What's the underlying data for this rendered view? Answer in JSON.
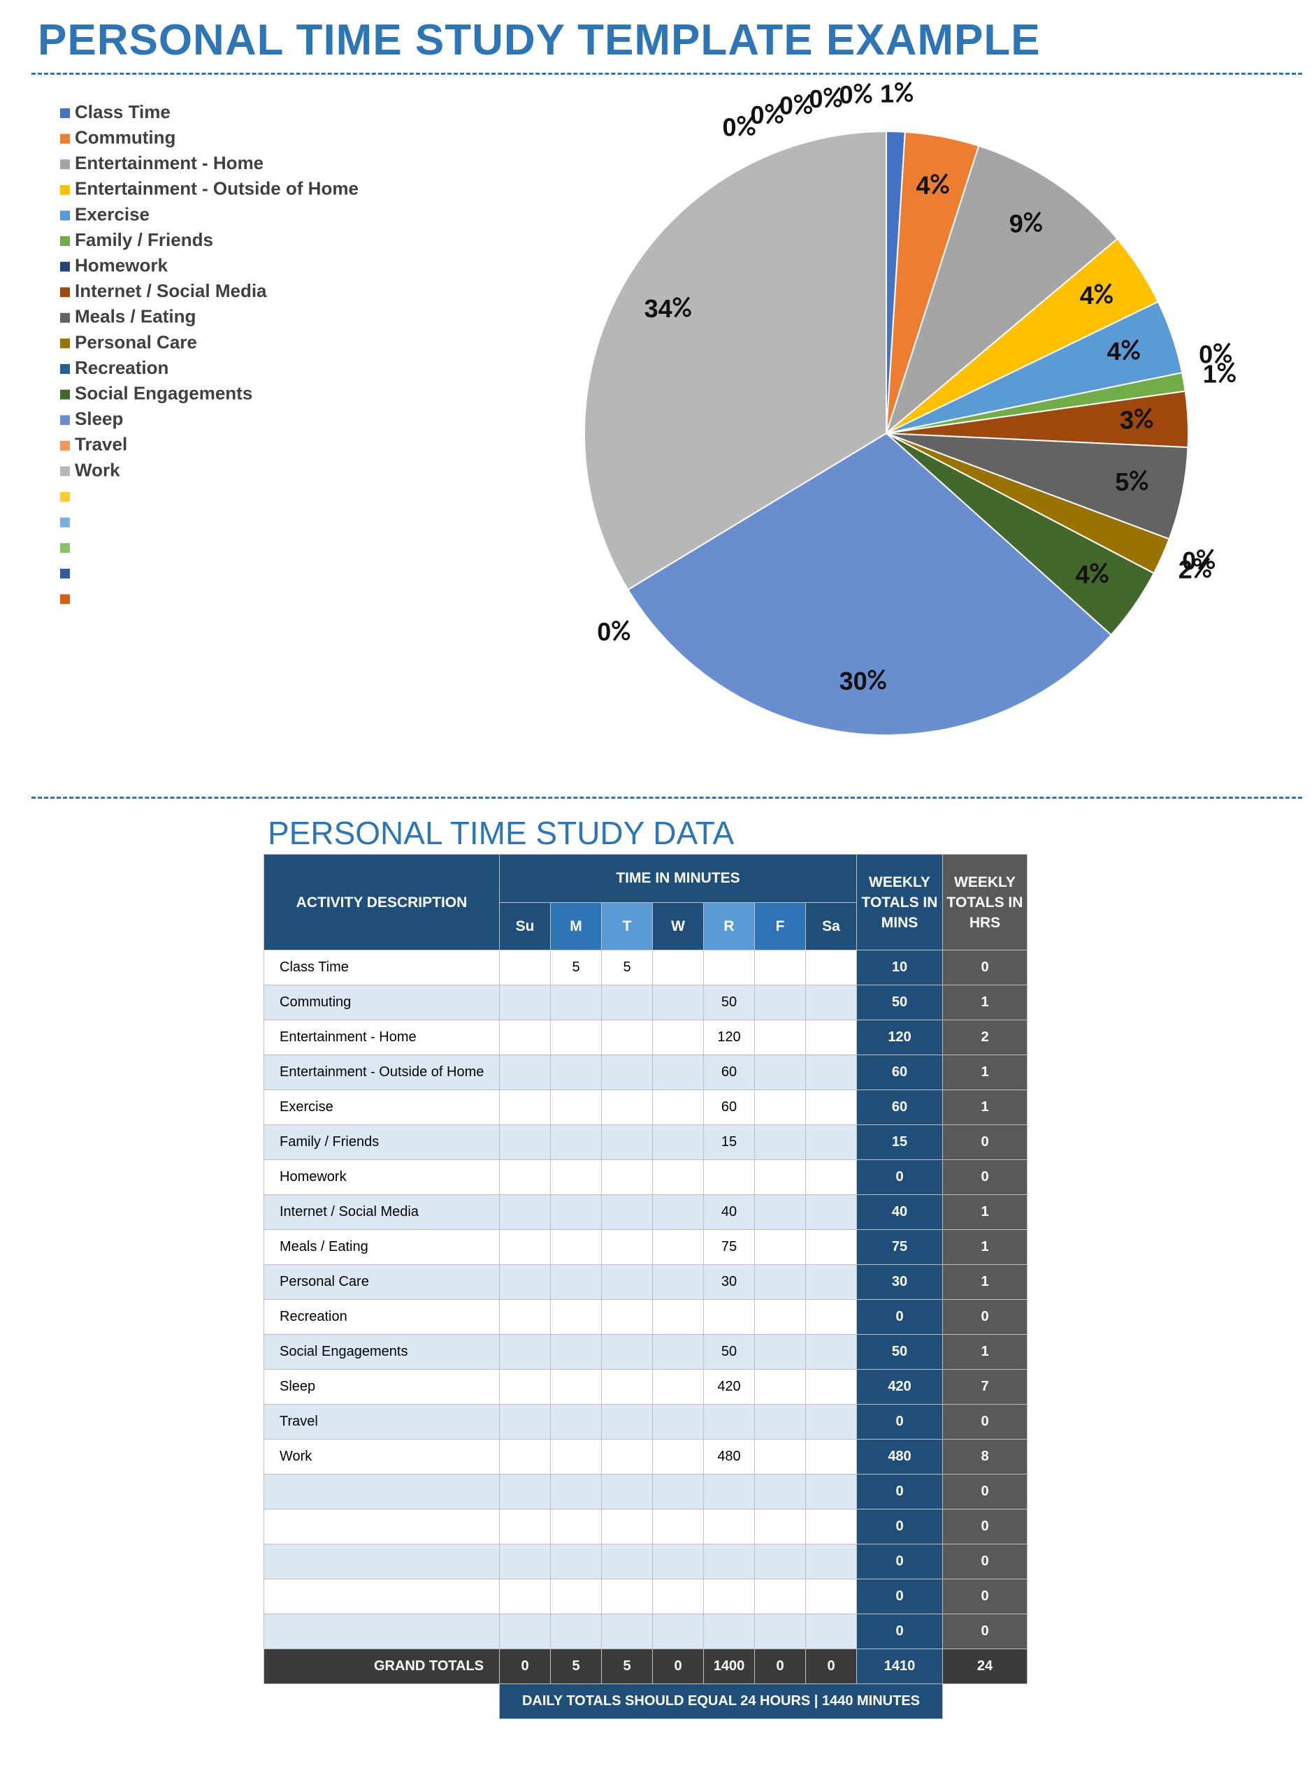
{
  "title": "PERSONAL TIME STUDY TEMPLATE EXAMPLE",
  "chart_data": {
    "type": "pie",
    "categories": [
      "Class Time",
      "Commuting",
      "Entertainment - Home",
      "Entertainment - Outside of Home",
      "Exercise",
      "Family / Friends",
      "Homework",
      "Internet / Social Media",
      "Meals / Eating",
      "Personal Care",
      "Recreation",
      "Social Engagements",
      "Sleep",
      "Travel",
      "Work",
      null,
      null,
      null,
      null,
      null
    ],
    "values": [
      1,
      4,
      9,
      4,
      4,
      1,
      0,
      3,
      5,
      2,
      0,
      4,
      30,
      0,
      34,
      0,
      0,
      0,
      0,
      0
    ],
    "colors": [
      "#4472c4",
      "#ed7d31",
      "#a5a5a5",
      "#ffc000",
      "#5b9bd5",
      "#70ad47",
      "#264478",
      "#9e480e",
      "#636363",
      "#997300",
      "#255e91",
      "#43682b",
      "#698ed0",
      "#f1975a",
      "#b7b7b7",
      "#ffcd33",
      "#7cafdd",
      "#8cc168",
      "#335aa1",
      "#d26012"
    ]
  },
  "table": {
    "title": "PERSONAL TIME STUDY DATA",
    "header": {
      "activity": "ACTIVITY DESCRIPTION",
      "time": "TIME IN MINUTES",
      "days": [
        "Su",
        "M",
        "T",
        "W",
        "R",
        "F",
        "Sa"
      ],
      "weekly_mins": "WEEKLY TOTALS IN MINS",
      "weekly_hrs": "WEEKLY TOTALS IN HRS"
    },
    "rows": [
      [
        "Class Time",
        null,
        5,
        5,
        null,
        null,
        null,
        null,
        10,
        0
      ],
      [
        "Commuting",
        null,
        null,
        null,
        null,
        50,
        null,
        null,
        50,
        1
      ],
      [
        "Entertainment - Home",
        null,
        null,
        null,
        null,
        120,
        null,
        null,
        120,
        2
      ],
      [
        "Entertainment - Outside of Home",
        null,
        null,
        null,
        null,
        60,
        null,
        null,
        60,
        1
      ],
      [
        "Exercise",
        null,
        null,
        null,
        null,
        60,
        null,
        null,
        60,
        1
      ],
      [
        "Family / Friends",
        null,
        null,
        null,
        null,
        15,
        null,
        null,
        15,
        0
      ],
      [
        "Homework",
        null,
        null,
        null,
        null,
        null,
        null,
        null,
        0,
        0
      ],
      [
        "Internet / Social Media",
        null,
        null,
        null,
        null,
        40,
        null,
        null,
        40,
        1
      ],
      [
        "Meals / Eating",
        null,
        null,
        null,
        null,
        75,
        null,
        null,
        75,
        1
      ],
      [
        "Personal Care",
        null,
        null,
        null,
        null,
        30,
        null,
        null,
        30,
        1
      ],
      [
        "Recreation",
        null,
        null,
        null,
        null,
        null,
        null,
        null,
        0,
        0
      ],
      [
        "Social Engagements",
        null,
        null,
        null,
        null,
        50,
        null,
        null,
        50,
        1
      ],
      [
        "Sleep",
        null,
        null,
        null,
        null,
        420,
        null,
        null,
        420,
        7
      ],
      [
        "Travel",
        null,
        null,
        null,
        null,
        null,
        null,
        null,
        0,
        0
      ],
      [
        "Work",
        null,
        null,
        null,
        null,
        480,
        null,
        null,
        480,
        8
      ],
      [
        null,
        null,
        null,
        null,
        null,
        null,
        null,
        null,
        0,
        0
      ],
      [
        null,
        null,
        null,
        null,
        null,
        null,
        null,
        null,
        0,
        0
      ],
      [
        null,
        null,
        null,
        null,
        null,
        null,
        null,
        null,
        0,
        0
      ],
      [
        null,
        null,
        null,
        null,
        null,
        null,
        null,
        null,
        0,
        0
      ],
      [
        null,
        null,
        null,
        null,
        null,
        null,
        null,
        null,
        0,
        0
      ]
    ],
    "totals": [
      "GRAND TOTALS",
      0,
      5,
      5,
      0,
      1400,
      0,
      0,
      1410,
      24
    ],
    "note": "DAILY TOTALS SHOULD EQUAL 24 HOURS  |  1440 MINUTES"
  }
}
